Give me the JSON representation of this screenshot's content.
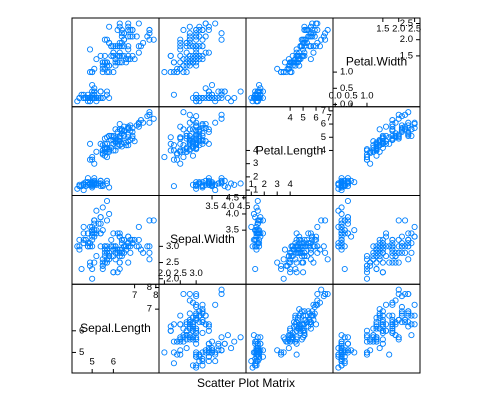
{
  "chart_data": {
    "type": "splom",
    "xlabel": "Scatter Plot Matrix",
    "color": "#0080ff",
    "variables": [
      {
        "name": "Sepal.Length",
        "lim": [
          4.05,
          8.15
        ],
        "ticks_low": [
          5,
          6
        ],
        "ticks_high": [
          7,
          8
        ],
        "values": [
          5.1,
          4.9,
          4.7,
          4.6,
          5.0,
          5.4,
          4.6,
          5.0,
          4.4,
          4.9,
          5.4,
          4.8,
          4.8,
          4.3,
          5.8,
          5.7,
          5.4,
          5.1,
          5.7,
          5.1,
          5.4,
          5.1,
          4.6,
          5.1,
          4.8,
          5.0,
          5.0,
          5.2,
          5.2,
          4.7,
          4.8,
          5.4,
          5.2,
          5.5,
          4.9,
          5.0,
          5.5,
          4.9,
          4.4,
          5.1,
          5.0,
          4.5,
          4.4,
          5.0,
          5.1,
          4.8,
          5.1,
          4.6,
          5.3,
          5.0,
          7.0,
          6.4,
          6.9,
          5.5,
          6.5,
          5.7,
          6.3,
          4.9,
          6.6,
          5.2,
          5.0,
          5.9,
          6.0,
          6.1,
          5.6,
          6.7,
          5.6,
          5.8,
          6.2,
          5.6,
          5.9,
          6.1,
          6.3,
          6.1,
          6.4,
          6.6,
          6.8,
          6.7,
          6.0,
          5.7,
          5.5,
          5.5,
          5.8,
          6.0,
          5.4,
          6.0,
          6.7,
          6.3,
          5.6,
          5.5,
          5.5,
          6.1,
          5.8,
          5.0,
          5.6,
          5.7,
          5.7,
          6.2,
          5.1,
          5.7,
          6.3,
          5.8,
          7.1,
          6.3,
          6.5,
          7.6,
          4.9,
          7.3,
          6.7,
          7.2,
          6.5,
          6.4,
          6.8,
          5.7,
          5.8,
          6.4,
          6.5,
          7.7,
          7.7,
          6.0,
          6.9,
          5.6,
          7.7,
          6.3,
          6.7,
          7.2,
          6.2,
          6.1,
          6.4,
          7.2,
          7.4,
          7.9,
          6.4,
          6.3,
          6.1,
          7.7,
          6.3,
          6.4,
          6.0,
          6.9,
          6.7,
          6.9,
          5.8,
          6.8,
          6.7,
          6.7,
          6.3,
          6.5,
          6.2,
          5.9
        ]
      },
      {
        "name": "Sepal.Width",
        "lim": [
          1.83,
          4.57
        ],
        "ticks_low": [
          {
            "value": 2,
            "label": "2.0"
          },
          2.5,
          {
            "value": 3,
            "label": "3.0"
          }
        ],
        "ticks_high": [
          3.5,
          {
            "value": 4,
            "label": "4.0"
          },
          4.5
        ],
        "values": [
          3.5,
          3.0,
          3.2,
          3.1,
          3.6,
          3.9,
          3.4,
          3.4,
          2.9,
          3.1,
          3.7,
          3.4,
          3.0,
          3.0,
          4.0,
          4.4,
          3.9,
          3.5,
          3.8,
          3.8,
          3.4,
          3.7,
          3.6,
          3.3,
          3.4,
          3.0,
          3.4,
          3.5,
          3.4,
          3.2,
          3.1,
          3.4,
          4.1,
          4.2,
          3.1,
          3.2,
          3.5,
          3.6,
          3.0,
          3.4,
          3.5,
          2.3,
          3.2,
          3.5,
          3.8,
          3.0,
          3.8,
          3.2,
          3.7,
          3.3,
          3.2,
          3.2,
          3.1,
          2.3,
          2.8,
          2.8,
          3.3,
          2.4,
          2.9,
          2.7,
          2.0,
          3.0,
          2.2,
          2.9,
          2.9,
          3.1,
          3.0,
          2.7,
          2.2,
          2.5,
          3.2,
          2.8,
          2.5,
          2.8,
          2.9,
          3.0,
          2.8,
          3.0,
          2.9,
          2.6,
          2.4,
          2.4,
          2.7,
          2.7,
          3.0,
          3.4,
          3.1,
          2.3,
          3.0,
          2.5,
          2.6,
          3.0,
          2.6,
          2.3,
          2.7,
          3.0,
          2.9,
          2.9,
          2.5,
          2.8,
          3.3,
          2.7,
          3.0,
          2.9,
          3.0,
          3.0,
          2.5,
          2.9,
          2.5,
          3.6,
          3.2,
          2.7,
          3.0,
          2.5,
          2.8,
          3.2,
          3.0,
          3.8,
          2.6,
          2.2,
          3.2,
          2.8,
          2.8,
          2.7,
          3.3,
          3.2,
          2.8,
          3.0,
          2.8,
          3.0,
          2.8,
          3.8,
          2.8,
          2.8,
          2.6,
          3.0,
          3.4,
          3.1,
          3.0,
          3.1,
          3.1,
          3.1,
          2.7,
          3.2,
          3.3,
          3.0,
          2.5,
          3.0,
          3.4,
          3.0
        ]
      },
      {
        "name": "Petal.Length",
        "lim": [
          0.59,
          7.31
        ],
        "ticks_low": [
          1,
          2,
          3,
          4
        ],
        "ticks_high": [
          4,
          5,
          6,
          7
        ],
        "values": [
          1.4,
          1.4,
          1.3,
          1.5,
          1.4,
          1.7,
          1.4,
          1.5,
          1.4,
          1.5,
          1.5,
          1.6,
          1.4,
          1.1,
          1.2,
          1.5,
          1.3,
          1.4,
          1.7,
          1.5,
          1.7,
          1.5,
          1.0,
          1.7,
          1.9,
          1.6,
          1.6,
          1.5,
          1.4,
          1.6,
          1.6,
          1.5,
          1.5,
          1.4,
          1.5,
          1.2,
          1.3,
          1.4,
          1.3,
          1.5,
          1.3,
          1.3,
          1.3,
          1.6,
          1.9,
          1.4,
          1.6,
          1.4,
          1.5,
          1.4,
          4.7,
          4.5,
          4.9,
          4.0,
          4.6,
          4.5,
          4.7,
          3.3,
          4.6,
          3.9,
          3.5,
          4.2,
          4.0,
          4.7,
          3.6,
          4.4,
          4.5,
          4.1,
          4.5,
          3.9,
          4.8,
          4.0,
          4.9,
          4.7,
          4.3,
          4.4,
          4.8,
          5.0,
          4.5,
          3.5,
          3.8,
          3.7,
          3.9,
          5.1,
          4.5,
          4.5,
          4.7,
          4.4,
          4.1,
          4.0,
          4.4,
          4.6,
          4.0,
          3.3,
          4.2,
          4.2,
          4.2,
          4.3,
          3.0,
          4.1,
          6.0,
          5.1,
          5.9,
          5.6,
          5.8,
          6.6,
          4.5,
          6.3,
          5.8,
          6.1,
          5.1,
          5.3,
          5.5,
          5.0,
          5.1,
          5.3,
          5.5,
          6.7,
          6.9,
          5.0,
          5.7,
          4.9,
          6.7,
          4.9,
          5.7,
          6.0,
          4.8,
          4.9,
          5.6,
          5.8,
          6.1,
          6.4,
          5.6,
          5.1,
          5.6,
          6.1,
          5.6,
          5.5,
          4.8,
          5.4,
          5.6,
          5.1,
          5.1,
          5.9,
          5.7,
          5.2,
          5.0,
          5.2,
          5.4,
          5.1
        ]
      },
      {
        "name": "Petal.Width",
        "lim": [
          -0.07,
          2.67
        ],
        "ticks_low": [
          {
            "value": 0,
            "label": "0.0"
          },
          0.5,
          {
            "value": 1,
            "label": "1.0"
          }
        ],
        "ticks_high": [
          1.5,
          {
            "value": 2,
            "label": "2.0"
          },
          2.5
        ],
        "values": [
          0.2,
          0.2,
          0.2,
          0.2,
          0.2,
          0.4,
          0.3,
          0.2,
          0.2,
          0.1,
          0.2,
          0.2,
          0.1,
          0.1,
          0.2,
          0.4,
          0.4,
          0.3,
          0.3,
          0.3,
          0.2,
          0.4,
          0.2,
          0.5,
          0.2,
          0.2,
          0.4,
          0.2,
          0.2,
          0.2,
          0.2,
          0.4,
          0.1,
          0.2,
          0.2,
          0.2,
          0.2,
          0.1,
          0.2,
          0.2,
          0.3,
          0.3,
          0.2,
          0.6,
          0.4,
          0.3,
          0.2,
          0.2,
          0.2,
          0.2,
          1.4,
          1.5,
          1.5,
          1.3,
          1.5,
          1.3,
          1.6,
          1.0,
          1.3,
          1.4,
          1.0,
          1.5,
          1.0,
          1.4,
          1.3,
          1.4,
          1.5,
          1.0,
          1.5,
          1.1,
          1.8,
          1.3,
          1.5,
          1.2,
          1.3,
          1.4,
          1.4,
          1.7,
          1.5,
          1.0,
          1.1,
          1.0,
          1.2,
          1.6,
          1.5,
          1.6,
          1.5,
          1.3,
          1.3,
          1.3,
          1.2,
          1.4,
          1.2,
          1.0,
          1.3,
          1.2,
          1.3,
          1.3,
          1.1,
          1.3,
          2.5,
          1.9,
          2.1,
          1.8,
          2.2,
          2.1,
          1.7,
          1.8,
          1.8,
          2.5,
          2.0,
          1.9,
          2.1,
          2.0,
          2.4,
          2.3,
          1.8,
          2.2,
          2.3,
          1.5,
          2.3,
          2.0,
          2.0,
          1.8,
          2.1,
          1.8,
          1.8,
          1.8,
          2.1,
          1.6,
          1.9,
          2.0,
          2.2,
          1.5,
          1.4,
          2.3,
          2.4,
          1.8,
          1.8,
          2.1,
          2.4,
          2.3,
          1.9,
          2.3,
          2.5,
          2.3,
          1.9,
          2.0,
          2.3,
          1.8
        ]
      }
    ]
  }
}
